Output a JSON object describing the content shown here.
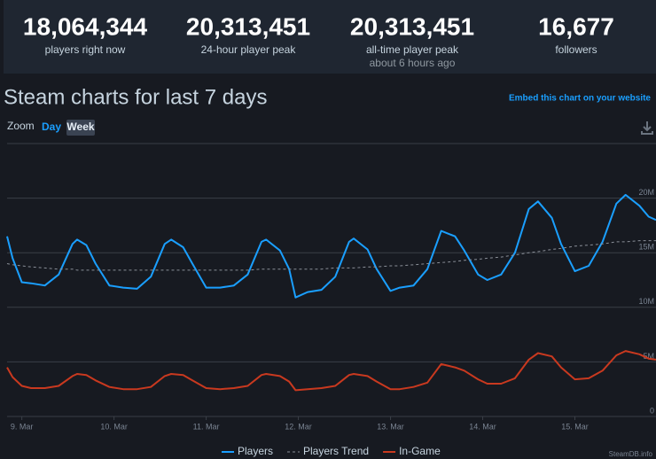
{
  "stats": [
    {
      "value": "18,064,344",
      "label": "players right now"
    },
    {
      "value": "20,313,451",
      "label": "24-hour player peak"
    },
    {
      "value": "20,313,451",
      "label": "all-time player peak",
      "note": "about 6 hours ago"
    },
    {
      "value": "16,677",
      "label": "followers"
    }
  ],
  "heading": "Steam charts for last 7 days",
  "embed_link": "Embed this chart on your website",
  "zoom": {
    "label": "Zoom",
    "options": [
      "Day",
      "Week"
    ]
  },
  "chart_data": {
    "type": "line",
    "credit": "SteamDB.info",
    "x": [
      8.84,
      8.9,
      9.0,
      9.1,
      9.25,
      9.4,
      9.55,
      9.6,
      9.7,
      9.8,
      9.95,
      10.1,
      10.25,
      10.4,
      10.55,
      10.62,
      10.75,
      10.85,
      11.0,
      11.15,
      11.3,
      11.45,
      11.6,
      11.65,
      11.8,
      11.9,
      11.97,
      12.1,
      12.25,
      12.4,
      12.55,
      12.6,
      12.75,
      12.85,
      13.0,
      13.1,
      13.25,
      13.4,
      13.55,
      13.7,
      13.8,
      13.95,
      14.05,
      14.2,
      14.35,
      14.5,
      14.6,
      14.75,
      14.85,
      15.0,
      15.15,
      15.3,
      15.45,
      15.55,
      15.7,
      15.8,
      15.88
    ],
    "series": [
      {
        "name": "Players",
        "color": "#1a9fff",
        "dashed": false,
        "values": [
          16500000,
          14500000,
          12300000,
          12200000,
          12000000,
          13000000,
          15800000,
          16200000,
          15700000,
          14000000,
          12000000,
          11800000,
          11700000,
          12800000,
          15800000,
          16200000,
          15500000,
          14000000,
          11800000,
          11800000,
          12000000,
          13000000,
          16000000,
          16200000,
          15200000,
          13500000,
          10900000,
          11400000,
          11600000,
          12800000,
          16000000,
          16300000,
          15300000,
          13500000,
          11500000,
          11800000,
          12000000,
          13500000,
          17000000,
          16500000,
          15200000,
          13000000,
          12500000,
          13000000,
          15000000,
          19000000,
          19700000,
          18200000,
          15800000,
          13300000,
          13800000,
          16000000,
          19500000,
          20300000,
          19300000,
          18300000,
          18000000
        ]
      },
      {
        "name": "Players Trend",
        "color": "#8a8f98",
        "dashed": true,
        "values": [
          14000000,
          13900000,
          13800000,
          13700000,
          13600000,
          13500000,
          13500000,
          13400000,
          13400000,
          13400000,
          13400000,
          13400000,
          13400000,
          13400000,
          13400000,
          13400000,
          13400000,
          13400000,
          13400000,
          13400000,
          13400000,
          13400000,
          13500000,
          13500000,
          13500000,
          13500000,
          13500000,
          13500000,
          13500000,
          13600000,
          13600000,
          13600000,
          13700000,
          13700000,
          13800000,
          13800000,
          13900000,
          14000000,
          14100000,
          14200000,
          14300000,
          14400000,
          14500000,
          14600000,
          14800000,
          15000000,
          15100000,
          15300000,
          15400000,
          15600000,
          15700000,
          15800000,
          16000000,
          16000000,
          16100000,
          16100000,
          16100000
        ]
      },
      {
        "name": "In-Game",
        "color": "#c9391f",
        "dashed": false,
        "values": [
          4500000,
          3600000,
          2800000,
          2600000,
          2600000,
          2800000,
          3700000,
          3900000,
          3800000,
          3300000,
          2700000,
          2500000,
          2500000,
          2700000,
          3700000,
          3900000,
          3800000,
          3300000,
          2600000,
          2500000,
          2600000,
          2800000,
          3800000,
          3900000,
          3700000,
          3200000,
          2400000,
          2500000,
          2600000,
          2800000,
          3800000,
          3900000,
          3700000,
          3200000,
          2500000,
          2500000,
          2700000,
          3100000,
          4800000,
          4500000,
          4200000,
          3400000,
          3000000,
          3000000,
          3500000,
          5200000,
          5800000,
          5500000,
          4500000,
          3400000,
          3500000,
          4200000,
          5600000,
          6000000,
          5700000,
          5300000,
          5200000
        ]
      }
    ],
    "xlim": [
      8.84,
      15.88
    ],
    "xticks": [
      {
        "value": 9,
        "label": "9. Mar"
      },
      {
        "value": 10,
        "label": "10. Mar"
      },
      {
        "value": 11,
        "label": "11. Mar"
      },
      {
        "value": 12,
        "label": "12. Mar"
      },
      {
        "value": 13,
        "label": "13. Mar"
      },
      {
        "value": 14,
        "label": "14. Mar"
      },
      {
        "value": 15,
        "label": "15. Mar"
      }
    ],
    "ylim": [
      0,
      25000000
    ],
    "yticks": [
      0,
      {
        "value": 5000000,
        "label": "5M"
      },
      {
        "value": 10000000,
        "label": "10M"
      },
      {
        "value": 15000000,
        "label": "15M"
      },
      {
        "value": 20000000,
        "label": "20M"
      }
    ],
    "grid": true,
    "legend": "bottom"
  }
}
